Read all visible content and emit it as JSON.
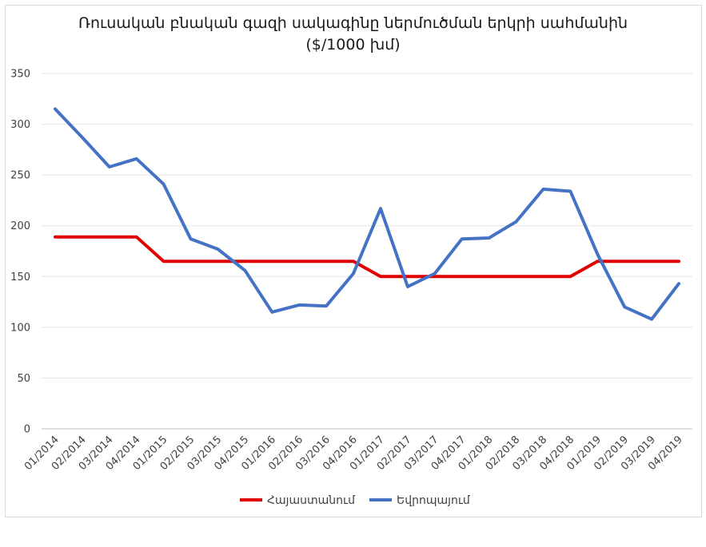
{
  "chart_data": {
    "type": "line",
    "title": "Ռուսական բնական գազի սակագինը ներմուծման երկրի սահմանին",
    "subtitle": "($/1000 խմ)",
    "x": [
      "01/2014",
      "02/2014",
      "03/2014",
      "04/2014",
      "01/2015",
      "02/2015",
      "03/2015",
      "04/2015",
      "01/2016",
      "02/2016",
      "03/2016",
      "04/2016",
      "01/2017",
      "02/2017",
      "03/2017",
      "04/2017",
      "01/2018",
      "02/2018",
      "03/2018",
      "04/2018",
      "01/2019",
      "02/2019",
      "03/2019",
      "04/2019"
    ],
    "yticks": [
      0,
      50,
      100,
      150,
      200,
      250,
      300,
      350
    ],
    "ylim": [
      0,
      350
    ],
    "grid": true,
    "legend": "bottom",
    "series": [
      {
        "name": "Հայաստանում",
        "color": "#e00000",
        "values": [
          189,
          189,
          189,
          189,
          165,
          165,
          165,
          165,
          165,
          165,
          165,
          165,
          150,
          150,
          150,
          150,
          150,
          150,
          150,
          150,
          165,
          165,
          165,
          165
        ]
      },
      {
        "name": "Եվրոպայում",
        "color": "#4472c4",
        "values": [
          315,
          287,
          258,
          266,
          241,
          187,
          177,
          156,
          115,
          122,
          121,
          153,
          217,
          140,
          153,
          187,
          188,
          204,
          236,
          234,
          172,
          120,
          108,
          143
        ]
      }
    ]
  }
}
